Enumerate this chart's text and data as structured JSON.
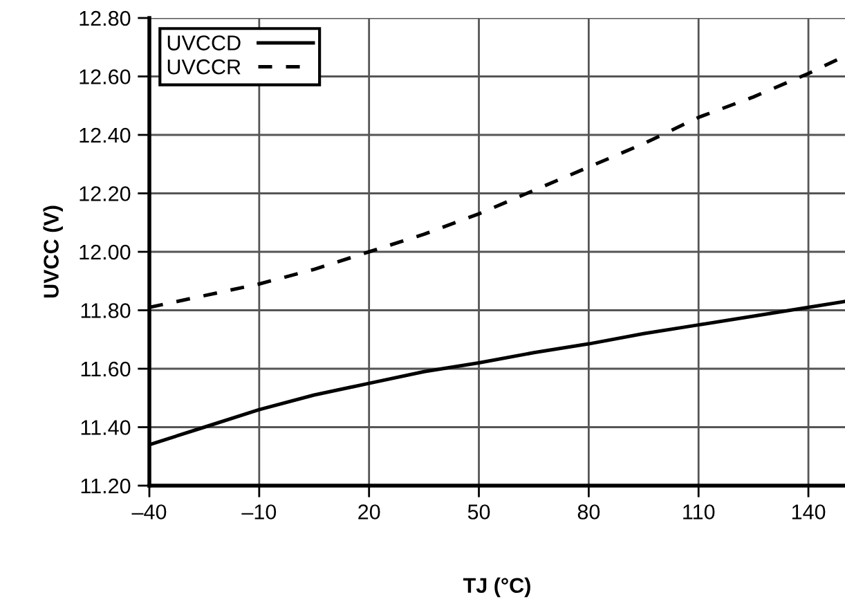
{
  "chart_data": {
    "type": "line",
    "xlabel": "TJ (°C)",
    "ylabel": "UVCC (V)",
    "x": [
      -40,
      -25,
      -10,
      5,
      20,
      35,
      50,
      65,
      80,
      95,
      110,
      125,
      140,
      150
    ],
    "series": [
      {
        "name": "UVCCD",
        "color": "#000000",
        "line_style": "solid",
        "values": [
          11.34,
          11.4,
          11.46,
          11.51,
          11.55,
          11.59,
          11.62,
          11.655,
          11.685,
          11.72,
          11.75,
          11.78,
          11.81,
          11.83
        ]
      },
      {
        "name": "UVCCR",
        "color": "#000000",
        "line_style": "dashed",
        "values": [
          11.81,
          11.85,
          11.89,
          11.94,
          12.0,
          12.06,
          12.13,
          12.21,
          12.29,
          12.37,
          12.46,
          12.53,
          12.61,
          12.67
        ]
      }
    ],
    "xlim": [
      -40,
      150
    ],
    "ylim": [
      11.2,
      12.8
    ],
    "xticks": [
      {
        "value": -40,
        "label": "–40"
      },
      {
        "value": -10,
        "label": "–10"
      },
      20,
      50,
      80,
      110,
      140
    ],
    "yticks": [
      {
        "value": 11.2,
        "label": "11.20"
      },
      {
        "value": 11.4,
        "label": "11.40"
      },
      {
        "value": 11.6,
        "label": "11.60"
      },
      {
        "value": 11.8,
        "label": "11.80"
      },
      {
        "value": 12.0,
        "label": "12.00"
      },
      {
        "value": 12.2,
        "label": "12.20"
      },
      {
        "value": 12.4,
        "label": "12.40"
      },
      {
        "value": 12.6,
        "label": "12.60"
      },
      {
        "value": 12.8,
        "label": "12.80"
      }
    ],
    "grid": true,
    "legend": "top left"
  }
}
